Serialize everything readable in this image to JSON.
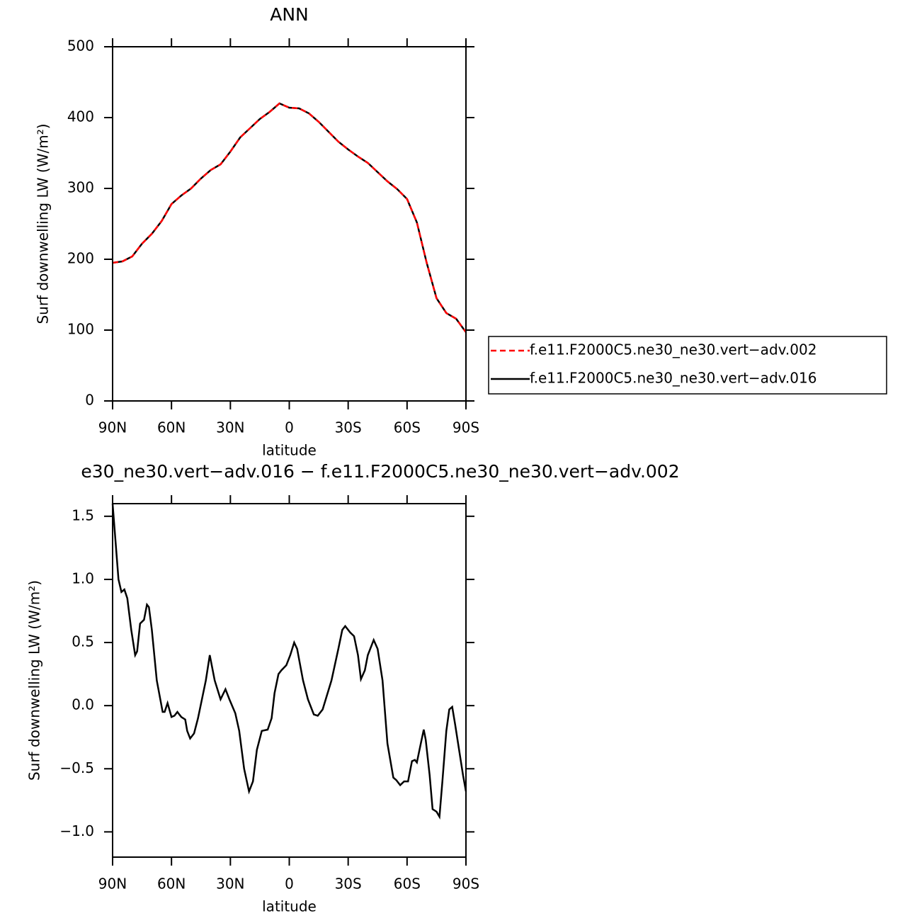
{
  "chart_data": [
    {
      "type": "line",
      "title": "ANN",
      "xlabel": "latitude",
      "ylabel": "Surf downwelling LW (W/m²)",
      "x": [
        90,
        85,
        80,
        75,
        70,
        65,
        60,
        55,
        50,
        45,
        40,
        35,
        30,
        25,
        20,
        15,
        10,
        5,
        0,
        -5,
        -10,
        -15,
        -20,
        -25,
        -30,
        -35,
        -40,
        -45,
        -50,
        -55,
        -60,
        -65,
        -70,
        -75,
        -80,
        -85,
        -90
      ],
      "series": [
        {
          "name": "f.e11.F2000C5.ne30_ne30.vert−adv.002",
          "color": "#ff0000",
          "style": "dashed",
          "values": [
            195,
            197,
            204,
            222,
            236,
            254,
            278,
            290,
            300,
            314,
            326,
            334,
            352,
            372,
            385,
            398,
            408,
            420,
            414,
            413,
            406,
            394,
            380,
            366,
            355,
            345,
            336,
            323,
            310,
            299,
            285,
            252,
            195,
            145,
            124,
            116,
            97
          ]
        },
        {
          "name": "f.e11.F2000C5.ne30_ne30.vert−adv.016",
          "color": "#000000",
          "style": "solid",
          "values": [
            195,
            197,
            204,
            222,
            236,
            254,
            278,
            290,
            300,
            314,
            326,
            334,
            352,
            372,
            385,
            398,
            408,
            420,
            414,
            413,
            406,
            394,
            380,
            366,
            355,
            345,
            336,
            323,
            310,
            299,
            285,
            252,
            195,
            145,
            124,
            116,
            97
          ]
        }
      ],
      "xlim": [
        90,
        -90
      ],
      "xticks": [
        {
          "value": 90,
          "label": "90N"
        },
        {
          "value": 60,
          "label": "60N"
        },
        {
          "value": 30,
          "label": "30N"
        },
        0,
        {
          "value": -30,
          "label": "30S"
        },
        {
          "value": -60,
          "label": "60S"
        },
        {
          "value": -90,
          "label": "90S"
        }
      ],
      "ylim": [
        0,
        500
      ],
      "yticks": [
        0,
        100,
        200,
        300,
        400,
        500
      ],
      "legend": "right"
    },
    {
      "type": "line",
      "title": "e30_ne30.vert−adv.016 − f.e11.F2000C5.ne30_ne30.vert−adv.002",
      "xlabel": "latitude",
      "ylabel": "Surf downwelling LW (W/m²)",
      "color": "#000000",
      "x": [
        90,
        88.5,
        87,
        85.5,
        84,
        82.5,
        80.5,
        78.5,
        77.5,
        76,
        74,
        72.5,
        71.5,
        70,
        67.5,
        64.5,
        63.5,
        62,
        60,
        58.5,
        57,
        55,
        53,
        52,
        50.5,
        48.5,
        46.5,
        44.5,
        42.5,
        40.5,
        38,
        35,
        32.5,
        30.5,
        27.5,
        25.5,
        23,
        20.5,
        18.5,
        16.5,
        14,
        11,
        9,
        7.5,
        5.5,
        4,
        1.5,
        -0.5,
        -2.5,
        -4,
        -7,
        -9.5,
        -12.5,
        -14.5,
        -17,
        -21.5,
        -25,
        -27,
        -28.5,
        -31,
        -33,
        -35,
        -36.5,
        -38.5,
        -40,
        -43,
        -45,
        -47.5,
        -50,
        -53,
        -54.5,
        -56.5,
        -58.5,
        -60.5,
        -62.5,
        -64,
        -65,
        -67,
        -68.5,
        -69.5,
        -71.5,
        -73,
        -75,
        -76.5,
        -78,
        -80,
        -81.5,
        -83,
        -84.5,
        -86.5,
        -88.5,
        -90
      ],
      "values": [
        1.6,
        1.3,
        1.0,
        0.9,
        0.92,
        0.85,
        0.6,
        0.4,
        0.43,
        0.65,
        0.68,
        0.8,
        0.78,
        0.6,
        0.2,
        -0.05,
        -0.05,
        0.02,
        -0.09,
        -0.08,
        -0.05,
        -0.09,
        -0.11,
        -0.2,
        -0.26,
        -0.22,
        -0.1,
        0.05,
        0.2,
        0.4,
        0.2,
        0.05,
        0.13,
        0.05,
        -0.06,
        -0.2,
        -0.5,
        -0.68,
        -0.6,
        -0.35,
        -0.2,
        -0.19,
        -0.1,
        0.1,
        0.25,
        0.28,
        0.32,
        0.4,
        0.5,
        0.45,
        0.2,
        0.05,
        -0.07,
        -0.08,
        -0.03,
        0.2,
        0.45,
        0.6,
        0.63,
        0.58,
        0.55,
        0.4,
        0.21,
        0.28,
        0.4,
        0.52,
        0.45,
        0.2,
        -0.3,
        -0.57,
        -0.59,
        -0.63,
        -0.6,
        -0.6,
        -0.44,
        -0.43,
        -0.45,
        -0.3,
        -0.19,
        -0.27,
        -0.55,
        -0.82,
        -0.84,
        -0.88,
        -0.6,
        -0.2,
        -0.03,
        -0.01,
        -0.15,
        -0.35,
        -0.55,
        -0.68
      ],
      "xlim": [
        90,
        -90
      ],
      "xticks": [
        {
          "value": 90,
          "label": "90N"
        },
        {
          "value": 60,
          "label": "60N"
        },
        {
          "value": 30,
          "label": "30N"
        },
        0,
        {
          "value": -30,
          "label": "30S"
        },
        {
          "value": -60,
          "label": "60S"
        },
        {
          "value": -90,
          "label": "90S"
        }
      ],
      "ylim": [
        -1.2,
        1.6
      ],
      "yticks": [
        {
          "value": -1,
          "label": "−1.0"
        },
        {
          "value": -0.5,
          "label": "−0.5"
        },
        {
          "value": 0,
          "label": "0.0"
        },
        0.5,
        {
          "value": 1,
          "label": "1.0"
        },
        1.5
      ]
    }
  ]
}
